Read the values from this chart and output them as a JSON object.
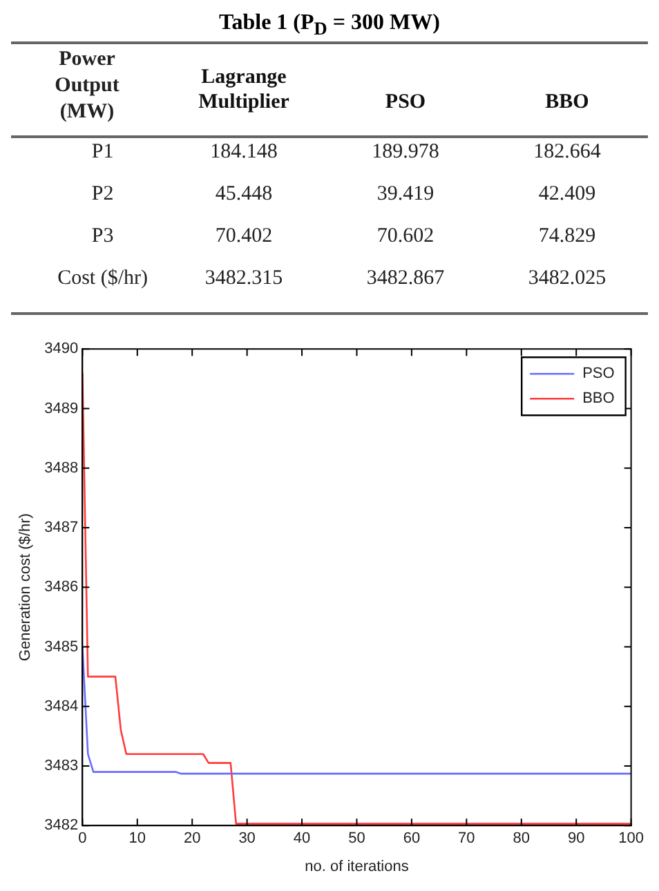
{
  "chart_data": [
    {
      "type": "heatmap",
      "title": "Table 1 (P$_{D}$ = 300 MW)",
      "ylabel": "Power Output (MW)",
      "categories": [
        "Lagrange Multiplier",
        "PSO",
        "BBO"
      ],
      "y_categories": [
        "P1",
        "P2",
        "P3",
        "Cost ($/hr)"
      ],
      "data_labels": true,
      "cells": [
        [
          184.148,
          189.978,
          182.664
        ],
        [
          45.448,
          39.419,
          42.409
        ],
        [
          70.402,
          70.602,
          74.829
        ],
        [
          3482.315,
          3482.867,
          3482.025
        ]
      ]
    },
    {
      "type": "line",
      "xlabel": "no. of iterations",
      "ylabel": "Generation cost ($/hr)",
      "xlim": [
        0,
        100
      ],
      "xticks": [
        0,
        10,
        20,
        30,
        40,
        50,
        60,
        70,
        80,
        90,
        100
      ],
      "ylim": [
        3482,
        3490
      ],
      "yticks": [
        3482,
        3483,
        3484,
        3485,
        3486,
        3487,
        3488,
        3489,
        3490
      ],
      "grid": false,
      "legend": "top right",
      "series": [
        {
          "name": "PSO",
          "color": "#6b6bff",
          "x": [
            0,
            1,
            2,
            17,
            18,
            100
          ],
          "values": [
            3485,
            3483.2,
            3482.9,
            3482.9,
            3482.87,
            3482.87
          ]
        },
        {
          "name": "BBO",
          "color": "#ff3b3b",
          "x": [
            0,
            1,
            6,
            7,
            8,
            22,
            23,
            27,
            28,
            100
          ],
          "values": [
            3489.6,
            3484.5,
            3484.5,
            3483.6,
            3483.2,
            3483.2,
            3483.05,
            3483.05,
            3482.03,
            3482.03
          ]
        }
      ]
    }
  ]
}
